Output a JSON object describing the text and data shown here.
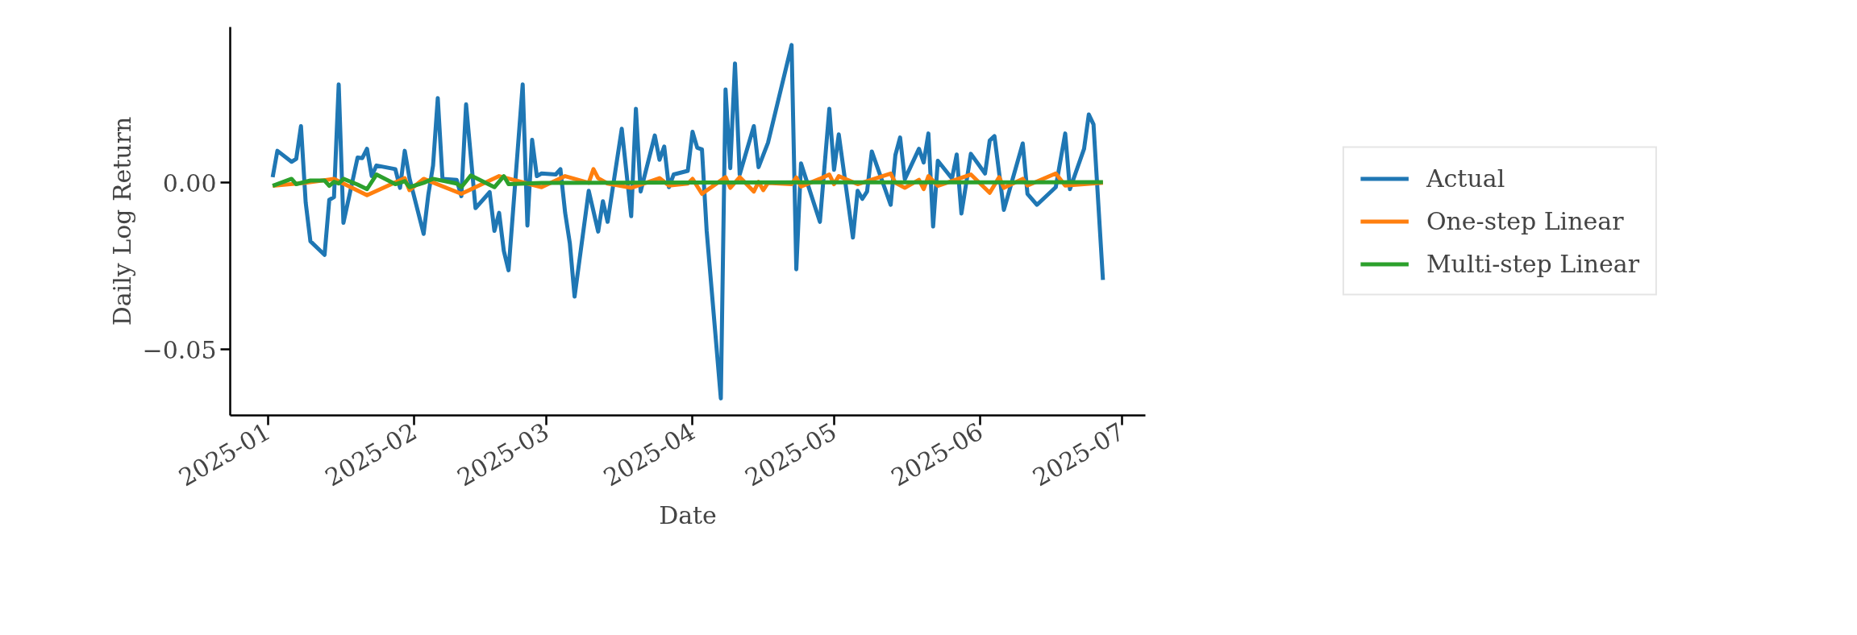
{
  "chart_data": {
    "type": "line",
    "xlabel": "Date",
    "ylabel": "Daily Log Return",
    "xlim": [
      "2024-12-24",
      "2025-07-06"
    ],
    "ylim": [
      -0.0697,
      0.0467
    ],
    "xticks": [
      "2025-01",
      "2025-02",
      "2025-03",
      "2025-04",
      "2025-05",
      "2025-06",
      "2025-07"
    ],
    "yticks": [
      {
        "value": -0.05,
        "label": "−0.05"
      },
      {
        "value": 0,
        "label": "0.00"
      }
    ],
    "grid": false,
    "legend": "right",
    "line_style": "solid",
    "series": [
      {
        "name": "Actual",
        "color": "#1f77b4",
        "x": [
          "2025-01-02",
          "2025-01-03",
          "2025-01-06",
          "2025-01-07",
          "2025-01-08",
          "2025-01-09",
          "2025-01-10",
          "2025-01-13",
          "2025-01-14",
          "2025-01-15",
          "2025-01-16",
          "2025-01-17",
          "2025-01-20",
          "2025-01-21",
          "2025-01-22",
          "2025-01-23",
          "2025-01-24",
          "2025-01-28",
          "2025-01-29",
          "2025-01-30",
          "2025-01-31",
          "2025-02-03",
          "2025-02-04",
          "2025-02-05",
          "2025-02-06",
          "2025-02-07",
          "2025-02-10",
          "2025-02-11",
          "2025-02-12",
          "2025-02-14",
          "2025-02-17",
          "2025-02-18",
          "2025-02-19",
          "2025-02-20",
          "2025-02-21",
          "2025-02-24",
          "2025-02-25",
          "2025-02-26",
          "2025-02-27",
          "2025-02-28",
          "2025-03-03",
          "2025-03-04",
          "2025-03-05",
          "2025-03-06",
          "2025-03-07",
          "2025-03-10",
          "2025-03-12",
          "2025-03-13",
          "2025-03-14",
          "2025-03-17",
          "2025-03-19",
          "2025-03-20",
          "2025-03-21",
          "2025-03-24",
          "2025-03-25",
          "2025-03-26",
          "2025-03-27",
          "2025-03-28",
          "2025-03-31",
          "2025-04-01",
          "2025-04-02",
          "2025-04-03",
          "2025-04-04",
          "2025-04-07",
          "2025-04-08",
          "2025-04-09",
          "2025-04-10",
          "2025-04-11",
          "2025-04-14",
          "2025-04-15",
          "2025-04-17",
          "2025-04-22",
          "2025-04-23",
          "2025-04-24",
          "2025-04-28",
          "2025-04-30",
          "2025-05-01",
          "2025-05-02",
          "2025-05-05",
          "2025-05-06",
          "2025-05-07",
          "2025-05-08",
          "2025-05-09",
          "2025-05-13",
          "2025-05-14",
          "2025-05-15",
          "2025-05-16",
          "2025-05-19",
          "2025-05-20",
          "2025-05-21",
          "2025-05-22",
          "2025-05-23",
          "2025-05-26",
          "2025-05-27",
          "2025-05-28",
          "2025-05-30",
          "2025-06-02",
          "2025-06-03",
          "2025-06-04",
          "2025-06-06",
          "2025-06-10",
          "2025-06-11",
          "2025-06-13",
          "2025-06-17",
          "2025-06-19",
          "2025-06-20",
          "2025-06-23",
          "2025-06-24",
          "2025-06-25",
          "2025-06-27"
        ],
        "values": [
          0.0017,
          0.0096,
          0.0063,
          0.0072,
          0.017,
          -0.0059,
          -0.0175,
          -0.0216,
          -0.0051,
          -0.0043,
          0.0295,
          -0.012,
          0.0076,
          0.0074,
          0.0102,
          0.002,
          0.0052,
          0.0041,
          -0.0015,
          0.0096,
          0.0014,
          -0.0153,
          -0.0035,
          0.0052,
          0.0254,
          0.0012,
          0.0009,
          -0.004,
          0.0235,
          -0.0076,
          -0.0028,
          -0.0144,
          -0.009,
          -0.0204,
          -0.0262,
          0.0295,
          -0.0128,
          0.0129,
          0.002,
          0.0028,
          0.0025,
          0.0041,
          -0.009,
          -0.0182,
          -0.0341,
          -0.0024,
          -0.0146,
          -0.0055,
          -0.0117,
          0.0162,
          -0.01,
          0.0222,
          -0.0026,
          0.0142,
          0.0069,
          0.0109,
          -0.0013,
          0.0025,
          0.0036,
          0.0153,
          0.0105,
          0.01,
          -0.0144,
          -0.0646,
          0.028,
          0.0044,
          0.0358,
          0.0025,
          0.017,
          0.0047,
          0.012,
          0.0413,
          -0.0259,
          0.0058,
          -0.0117,
          0.0222,
          0.0039,
          0.0145,
          -0.0164,
          -0.0024,
          -0.0048,
          -0.0026,
          0.0094,
          -0.0066,
          0.0083,
          0.0136,
          0.0011,
          0.0102,
          0.0061,
          0.0148,
          -0.0131,
          0.0066,
          0.0013,
          0.0085,
          -0.0092,
          0.0087,
          0.0028,
          0.0127,
          0.014,
          -0.0081,
          0.0118,
          -0.0033,
          -0.0066,
          -0.0013,
          0.0148,
          -0.0019,
          0.0102,
          0.0205,
          0.0175,
          -0.0291
        ]
      },
      {
        "name": "One-step Linear",
        "color": "#ff7f0e",
        "x": [
          "2025-01-02",
          "2025-01-09",
          "2025-01-15",
          "2025-01-22",
          "2025-01-30",
          "2025-01-31",
          "2025-02-03",
          "2025-02-11",
          "2025-02-19",
          "2025-02-28",
          "2025-03-05",
          "2025-03-10",
          "2025-03-11",
          "2025-03-12",
          "2025-03-14",
          "2025-03-19",
          "2025-03-25",
          "2025-03-27",
          "2025-03-31",
          "2025-04-01",
          "2025-04-03",
          "2025-04-08",
          "2025-04-09",
          "2025-04-11",
          "2025-04-14",
          "2025-04-15",
          "2025-04-16",
          "2025-04-17",
          "2025-04-22",
          "2025-04-23",
          "2025-04-24",
          "2025-04-28",
          "2025-04-30",
          "2025-05-01",
          "2025-05-02",
          "2025-05-06",
          "2025-05-13",
          "2025-05-14",
          "2025-05-16",
          "2025-05-19",
          "2025-05-20",
          "2025-05-21",
          "2025-05-23",
          "2025-05-30",
          "2025-06-03",
          "2025-06-05",
          "2025-06-06",
          "2025-06-10",
          "2025-06-11",
          "2025-06-17",
          "2025-06-19",
          "2025-06-27"
        ],
        "values": [
          -0.0009,
          0.0,
          0.0012,
          -0.0037,
          0.0014,
          -0.0022,
          0.0012,
          -0.0033,
          0.002,
          -0.0013,
          0.002,
          0.0,
          0.0041,
          0.0014,
          -0.0002,
          -0.0015,
          0.0014,
          -0.0008,
          -0.0002,
          0.0012,
          -0.0033,
          0.0017,
          -0.0015,
          0.0017,
          -0.0026,
          0.0003,
          -0.0022,
          0.0,
          -0.0004,
          0.0016,
          -0.0011,
          0.0012,
          0.0025,
          -0.0004,
          0.002,
          -0.0004,
          0.0028,
          0.0,
          -0.0015,
          0.0009,
          -0.0019,
          0.002,
          -0.0009,
          0.0025,
          -0.003,
          0.0017,
          -0.0015,
          0.0012,
          -0.0008,
          0.0028,
          -0.0008,
          0.0
        ]
      },
      {
        "name": "Multi-step Linear",
        "color": "#2ca02c",
        "x": [
          "2025-01-02",
          "2025-01-06",
          "2025-01-07",
          "2025-01-10",
          "2025-01-13",
          "2025-01-14",
          "2025-01-15",
          "2025-01-16",
          "2025-01-17",
          "2025-01-20",
          "2025-01-22",
          "2025-01-24",
          "2025-01-28",
          "2025-01-30",
          "2025-01-31",
          "2025-02-03",
          "2025-02-05",
          "2025-02-10",
          "2025-02-11",
          "2025-02-13",
          "2025-02-18",
          "2025-02-20",
          "2025-02-21",
          "2025-02-28",
          "2025-04-01",
          "2025-06-27"
        ],
        "values": [
          -0.0009,
          0.0012,
          -0.0004,
          0.0007,
          0.0007,
          -0.0009,
          0.0003,
          -0.0002,
          0.0012,
          -0.0005,
          -0.0019,
          0.0025,
          -0.0004,
          0.0005,
          -0.0013,
          0.0,
          0.0012,
          -0.0002,
          -0.0013,
          0.0022,
          -0.0013,
          0.002,
          -0.0004,
          0.0,
          0.0001,
          0.0002
        ]
      }
    ]
  }
}
